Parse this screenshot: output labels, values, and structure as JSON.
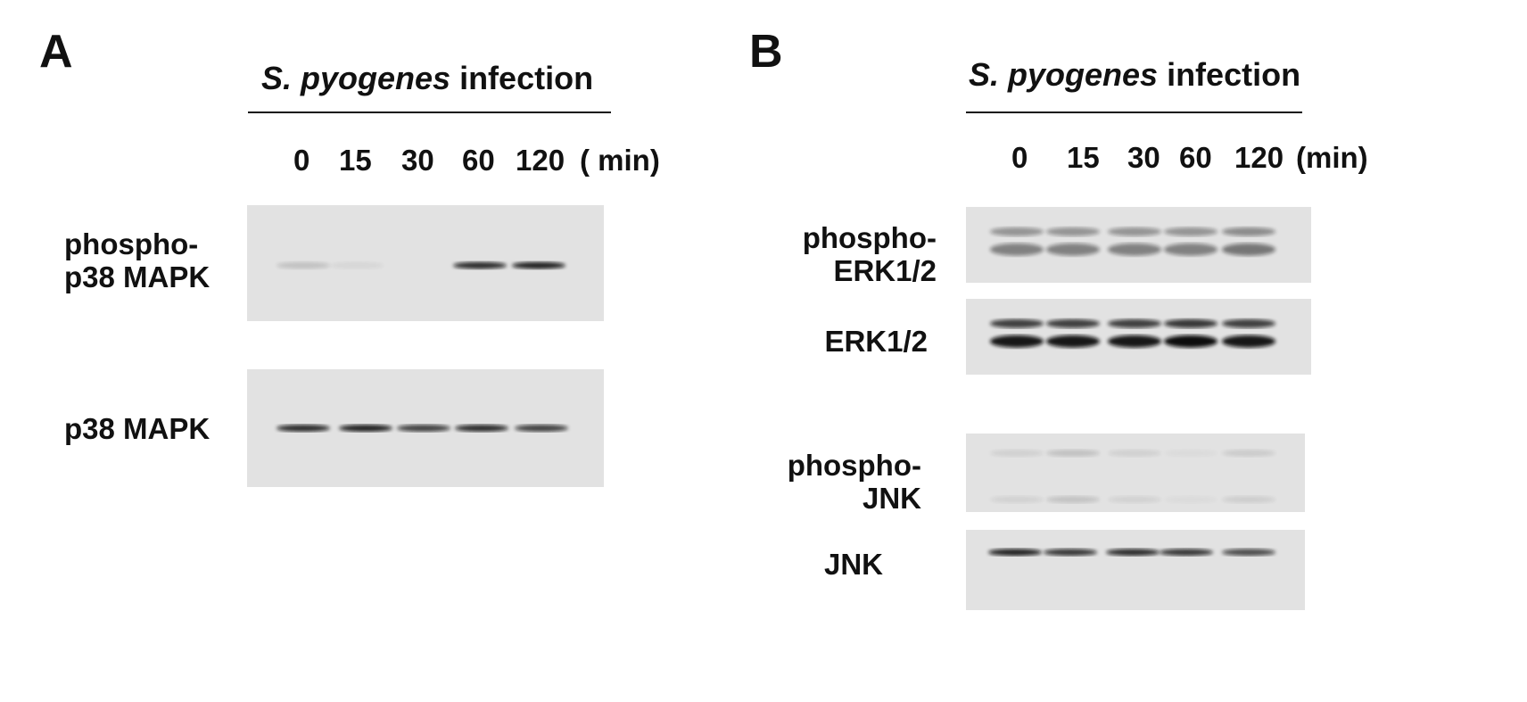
{
  "panel_a": {
    "letter": "A",
    "header_italic": "S. pyogenes",
    "header_rest": " infection",
    "time_points": [
      "0",
      "15",
      "30",
      "60",
      "120"
    ],
    "time_unit": "( min)",
    "blots": [
      {
        "label_lines": [
          "phospho-",
          "p38 MAPK"
        ],
        "band_intensity": [
          0.15,
          0.05,
          0.0,
          0.85,
          0.9
        ]
      },
      {
        "label_lines": [
          "p38 MAPK"
        ],
        "band_intensity": [
          0.85,
          0.9,
          0.75,
          0.85,
          0.75
        ]
      }
    ]
  },
  "panel_b": {
    "letter": "B",
    "header_italic": "S. pyogenes",
    "header_rest": " infection",
    "time_points": [
      "0",
      "15",
      "30",
      "60",
      "120"
    ],
    "time_unit": "(min)",
    "blots": [
      {
        "label_lines": [
          "phospho-",
          "ERK1/2"
        ],
        "band_intensity": [
          0.45,
          0.45,
          0.45,
          0.45,
          0.5
        ]
      },
      {
        "label_lines": [
          "ERK1/2"
        ],
        "band_intensity": [
          0.95,
          0.95,
          0.95,
          1.0,
          0.95
        ]
      },
      {
        "label_lines": [
          "phospho-",
          "JNK"
        ],
        "band_intensity": [
          0.08,
          0.15,
          0.08,
          0.03,
          0.1
        ]
      },
      {
        "label_lines": [
          "JNK"
        ],
        "band_intensity": [
          0.9,
          0.8,
          0.85,
          0.8,
          0.7
        ]
      }
    ]
  }
}
